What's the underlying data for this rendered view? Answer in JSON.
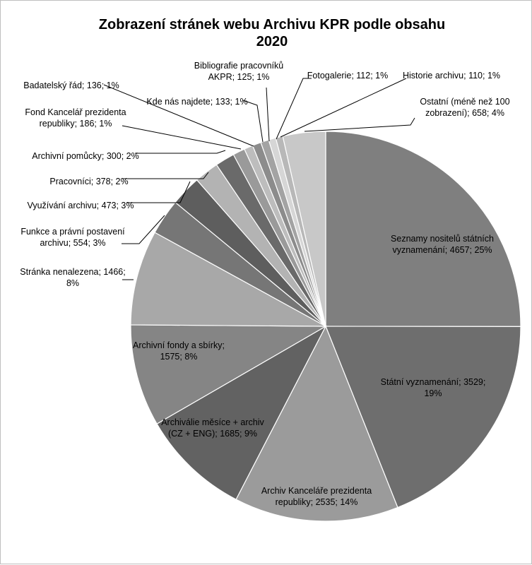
{
  "chart_data": {
    "type": "pie",
    "title_line1": "Zobrazení stránek webu Archivu KPR podle obsahu",
    "title_line2": "2020",
    "slices": [
      {
        "label_line1": "Seznamy nositelů státních",
        "label_line2": "vyznamenání; 4657; 25%",
        "value": 4657,
        "percent": 25,
        "color": "#7f7f7f"
      },
      {
        "label_line1": "Státní vyznamenání; 3529;",
        "label_line2": "19%",
        "value": 3529,
        "percent": 19,
        "color": "#6e6e6e"
      },
      {
        "label_line1": "Archiv Kanceláře prezidenta",
        "label_line2": "republiky; 2535; 14%",
        "value": 2535,
        "percent": 14,
        "color": "#9b9b9b"
      },
      {
        "label_line1": "Archiválie měsíce + archiv",
        "label_line2": "(CZ + ENG); 1685; 9%",
        "value": 1685,
        "percent": 9,
        "color": "#626262"
      },
      {
        "label_line1": "Archivní fondy a sbírky;",
        "label_line2": "1575; 8%",
        "value": 1575,
        "percent": 8,
        "color": "#858585"
      },
      {
        "label_line1": "Stránka nenalezena; 1466;",
        "label_line2": "8%",
        "value": 1466,
        "percent": 8,
        "color": "#a8a8a8"
      },
      {
        "label_line1": "Funkce a právní postavení",
        "label_line2": "archivu; 554; 3%",
        "value": 554,
        "percent": 3,
        "color": "#767676"
      },
      {
        "label_line1": "Využívání archivu; 473; 3%",
        "label_line2": "",
        "value": 473,
        "percent": 3,
        "color": "#5e5e5e"
      },
      {
        "label_line1": "Pracovníci; 378; 2%",
        "label_line2": "",
        "value": 378,
        "percent": 2,
        "color": "#b3b3b3"
      },
      {
        "label_line1": "Archivní pomůcky; 300; 2%",
        "label_line2": "",
        "value": 300,
        "percent": 2,
        "color": "#6a6a6a"
      },
      {
        "label_line1": "Fond Kancelář prezidenta",
        "label_line2": "republiky; 186; 1%",
        "value": 186,
        "percent": 1,
        "color": "#9a9a9a"
      },
      {
        "label_line1": "Badatelský řád; 136; 1%",
        "label_line2": "",
        "value": 136,
        "percent": 1,
        "color": "#bdbdbd"
      },
      {
        "label_line1": "Kde nás najdete; 133; 1%",
        "label_line2": "",
        "value": 133,
        "percent": 1,
        "color": "#8c8c8c"
      },
      {
        "label_line1": "Bibliografie pracovníků",
        "label_line2": "AKPR; 125; 1%",
        "value": 125,
        "percent": 1,
        "color": "#a3a3a3"
      },
      {
        "label_line1": "Fotogalerie; 112; 1%",
        "label_line2": "",
        "value": 112,
        "percent": 1,
        "color": "#d6d6d6"
      },
      {
        "label_line1": "Historie archivu; 110; 1%",
        "label_line2": "",
        "value": 110,
        "percent": 1,
        "color": "#b8b8b8"
      },
      {
        "label_line1": "Ostatní (méně než 100",
        "label_line2": "zobrazení); 658; 4%",
        "value": 658,
        "percent": 4,
        "color": "#c8c8c8"
      }
    ]
  }
}
